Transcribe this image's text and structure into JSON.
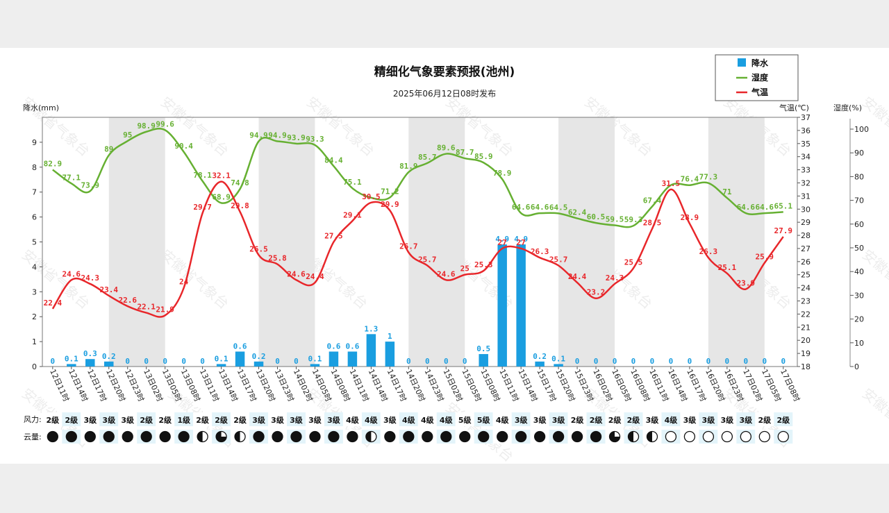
{
  "chart_data": {
    "type": "bar+line",
    "title": "精细化气象要素预报(池州)",
    "subtitle": "2025年06月12日08时发布",
    "left_axis_label": "降水(mm)",
    "right_axis_label_temp": "气温(℃)",
    "right_axis_label_hum": "湿度(%)",
    "precip_ylim": [
      0,
      10
    ],
    "precip_ticks": [
      0,
      1,
      2,
      3,
      4,
      5,
      6,
      7,
      8,
      9
    ],
    "temp_ylim": [
      18,
      37
    ],
    "temp_ticks": [
      18,
      19,
      20,
      21,
      22,
      23,
      24,
      25,
      26,
      27,
      28,
      29,
      30,
      31,
      32,
      33,
      34,
      35,
      36,
      37
    ],
    "hum_ylim": [
      0,
      100
    ],
    "hum_ticks": [
      0,
      10,
      20,
      30,
      40,
      50,
      60,
      70,
      80,
      90,
      100
    ],
    "legend_position": "top-right",
    "legend": [
      {
        "name": "降水",
        "color": "#1a9ee0",
        "kind": "bar"
      },
      {
        "name": "湿度",
        "color": "#66b032",
        "kind": "line"
      },
      {
        "name": "气温",
        "color": "#e8262a",
        "kind": "line"
      }
    ],
    "categories": [
      "12日11时",
      "12日14时",
      "12日17时",
      "12日20时",
      "12日23时",
      "13日02时",
      "13日05时",
      "13日08时",
      "13日11时",
      "13日14时",
      "13日17时",
      "13日20时",
      "13日23时",
      "14日02时",
      "14日05时",
      "14日08时",
      "14日11时",
      "14日14时",
      "14日17时",
      "14日20时",
      "14日23时",
      "15日02时",
      "15日05时",
      "15日08时",
      "15日11时",
      "15日14时",
      "15日17时",
      "15日20时",
      "15日23时",
      "16日02时",
      "16日05时",
      "16日08时",
      "16日11时",
      "16日14时",
      "16日17时",
      "16日20时",
      "16日23时",
      "17日02时",
      "17日05时",
      "17日08时"
    ],
    "shaded_bands": [
      [
        3,
        6
      ],
      [
        11,
        14
      ],
      [
        19,
        22
      ],
      [
        27,
        30
      ],
      [
        35,
        38
      ]
    ],
    "series": [
      {
        "name": "降水",
        "type": "bar",
        "values": [
          0,
          0.1,
          0.3,
          0.2,
          0,
          0,
          0,
          0,
          0,
          0.1,
          0.6,
          0.2,
          0,
          0,
          0.1,
          0.6,
          0.6,
          1.3,
          1,
          0,
          0,
          0,
          0,
          0.5,
          4.9,
          4.9,
          0.2,
          0.1,
          0,
          0,
          0,
          0,
          0,
          0,
          0,
          0,
          0,
          0,
          0,
          0
        ]
      },
      {
        "name": "湿度",
        "type": "line",
        "values": [
          82.9,
          77.1,
          73.9,
          89,
          95,
          98.9,
          99.6,
          90.4,
          78.1,
          68.9,
          74.8,
          94.9,
          94.9,
          93.9,
          93.3,
          84.4,
          75.1,
          71.1,
          71.2,
          81.9,
          85.7,
          89.6,
          87.7,
          85.9,
          78.9,
          64.6,
          64.6,
          64.5,
          62.4,
          60.5,
          59.5,
          59.3,
          67.4,
          76.4,
          76.4,
          77.3,
          71,
          64.6,
          64.6,
          65.1
        ],
        "labels": [
          "82.9",
          "77.1",
          "73.9",
          "89",
          "95",
          "98.9",
          "99.6",
          "90.4",
          "78.1",
          "68.9",
          "74.8",
          "94.9",
          "94.9",
          "93.9",
          "93.3",
          "84.4",
          "75.1",
          "",
          "71.2",
          "81.9",
          "85.7",
          "89.6",
          "87.7",
          "85.9",
          "78.9",
          "64.6",
          "64.6",
          "64.5",
          "62.4",
          "60.5",
          "59.5",
          "59.3",
          "67.4",
          "",
          "76.4",
          "77.3",
          "71",
          "64.6",
          "64.6",
          "65.1"
        ]
      },
      {
        "name": "气温",
        "type": "line",
        "values": [
          22.4,
          24.6,
          24.3,
          23.4,
          22.6,
          22.1,
          21.9,
          24,
          29.7,
          32.1,
          29.8,
          26.5,
          25.8,
          24.6,
          24.4,
          27.5,
          29.1,
          30.5,
          29.9,
          26.7,
          25.7,
          24.6,
          25,
          25.3,
          27,
          27,
          26.3,
          25.7,
          24.4,
          23.2,
          24.3,
          25.5,
          28.5,
          31.5,
          28.9,
          26.3,
          25.1,
          23.9,
          25.9,
          27.9
        ]
      }
    ],
    "wind_label": "风力:",
    "wind": [
      "2级",
      "2级",
      "3级",
      "3级",
      "3级",
      "2级",
      "2级",
      "1级",
      "2级",
      "2级",
      "2级",
      "3级",
      "3级",
      "3级",
      "3级",
      "3级",
      "4级",
      "4级",
      "3级",
      "4级",
      "4级",
      "4级",
      "5级",
      "5级",
      "4级",
      "3级",
      "3级",
      "3级",
      "2级",
      "2级",
      "2级",
      "2级",
      "3级",
      "4级",
      "3级",
      "3级",
      "3级",
      "3级",
      "2级",
      "2级"
    ],
    "cloud_label": "云量:",
    "cloud": [
      1,
      1,
      1,
      1,
      1,
      1,
      1,
      1,
      0.5,
      0.75,
      0.5,
      1,
      1,
      1,
      1,
      1,
      1,
      0.5,
      1,
      1,
      1,
      1,
      1,
      1,
      1,
      1,
      1,
      1,
      1,
      1,
      0.75,
      0.5,
      0.5,
      0,
      0,
      0,
      0,
      0,
      0,
      0
    ]
  },
  "watermark": "安徽省气象台",
  "colors": {
    "precip": "#1a9ee0",
    "humidity": "#66b032",
    "temperature": "#e8262a",
    "band": "#e6e6e6"
  }
}
